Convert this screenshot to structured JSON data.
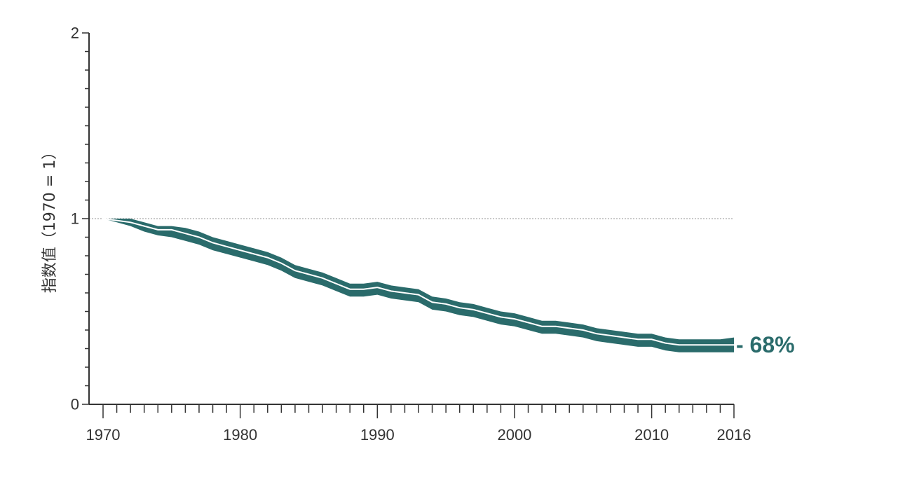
{
  "chart_data": {
    "type": "area",
    "ylabel": "指数值（1970 = 1）",
    "xlabel": "",
    "xlim": [
      1970,
      2016
    ],
    "ylim": [
      0,
      2
    ],
    "x_tick_labels": [
      "1970",
      "1980",
      "1990",
      "2000",
      "2010",
      "2016"
    ],
    "y_tick_labels": [
      "0",
      "1",
      "2"
    ],
    "reference_line": 1,
    "end_label": "- 68%",
    "colors": {
      "band": "#2a6b6b",
      "line": "#ffffff",
      "axis": "#333333",
      "reference": "#aaaaaa"
    },
    "x": [
      1970,
      1971,
      1972,
      1973,
      1974,
      1975,
      1976,
      1977,
      1978,
      1979,
      1980,
      1981,
      1982,
      1983,
      1984,
      1985,
      1986,
      1987,
      1988,
      1989,
      1990,
      1991,
      1992,
      1993,
      1994,
      1995,
      1996,
      1997,
      1998,
      1999,
      2000,
      2001,
      2002,
      2003,
      2004,
      2005,
      2006,
      2007,
      2008,
      2009,
      2010,
      2011,
      2012,
      2013,
      2014,
      2015,
      2016
    ],
    "series": [
      {
        "role": "index",
        "values": [
          1.0,
          0.99,
          0.98,
          0.96,
          0.94,
          0.94,
          0.92,
          0.9,
          0.87,
          0.85,
          0.83,
          0.81,
          0.79,
          0.76,
          0.72,
          0.7,
          0.68,
          0.65,
          0.62,
          0.62,
          0.63,
          0.61,
          0.6,
          0.59,
          0.55,
          0.54,
          0.52,
          0.51,
          0.49,
          0.47,
          0.46,
          0.44,
          0.42,
          0.42,
          0.41,
          0.4,
          0.38,
          0.37,
          0.36,
          0.35,
          0.35,
          0.33,
          0.32,
          0.32,
          0.32,
          0.32,
          0.32
        ]
      },
      {
        "role": "upper",
        "values": [
          1.0,
          1.0,
          1.0,
          0.98,
          0.96,
          0.96,
          0.95,
          0.93,
          0.9,
          0.88,
          0.86,
          0.84,
          0.82,
          0.79,
          0.75,
          0.73,
          0.71,
          0.68,
          0.65,
          0.65,
          0.66,
          0.64,
          0.63,
          0.62,
          0.58,
          0.57,
          0.55,
          0.54,
          0.52,
          0.5,
          0.49,
          0.47,
          0.45,
          0.45,
          0.44,
          0.43,
          0.41,
          0.4,
          0.39,
          0.38,
          0.38,
          0.36,
          0.35,
          0.35,
          0.35,
          0.35,
          0.36
        ]
      },
      {
        "role": "lower",
        "values": [
          1.0,
          0.98,
          0.96,
          0.93,
          0.91,
          0.9,
          0.88,
          0.86,
          0.83,
          0.81,
          0.79,
          0.77,
          0.75,
          0.72,
          0.68,
          0.66,
          0.64,
          0.61,
          0.58,
          0.58,
          0.59,
          0.57,
          0.56,
          0.55,
          0.51,
          0.5,
          0.48,
          0.47,
          0.45,
          0.43,
          0.42,
          0.4,
          0.38,
          0.38,
          0.37,
          0.36,
          0.34,
          0.33,
          0.32,
          0.31,
          0.31,
          0.29,
          0.28,
          0.28,
          0.28,
          0.28,
          0.28
        ]
      }
    ]
  }
}
